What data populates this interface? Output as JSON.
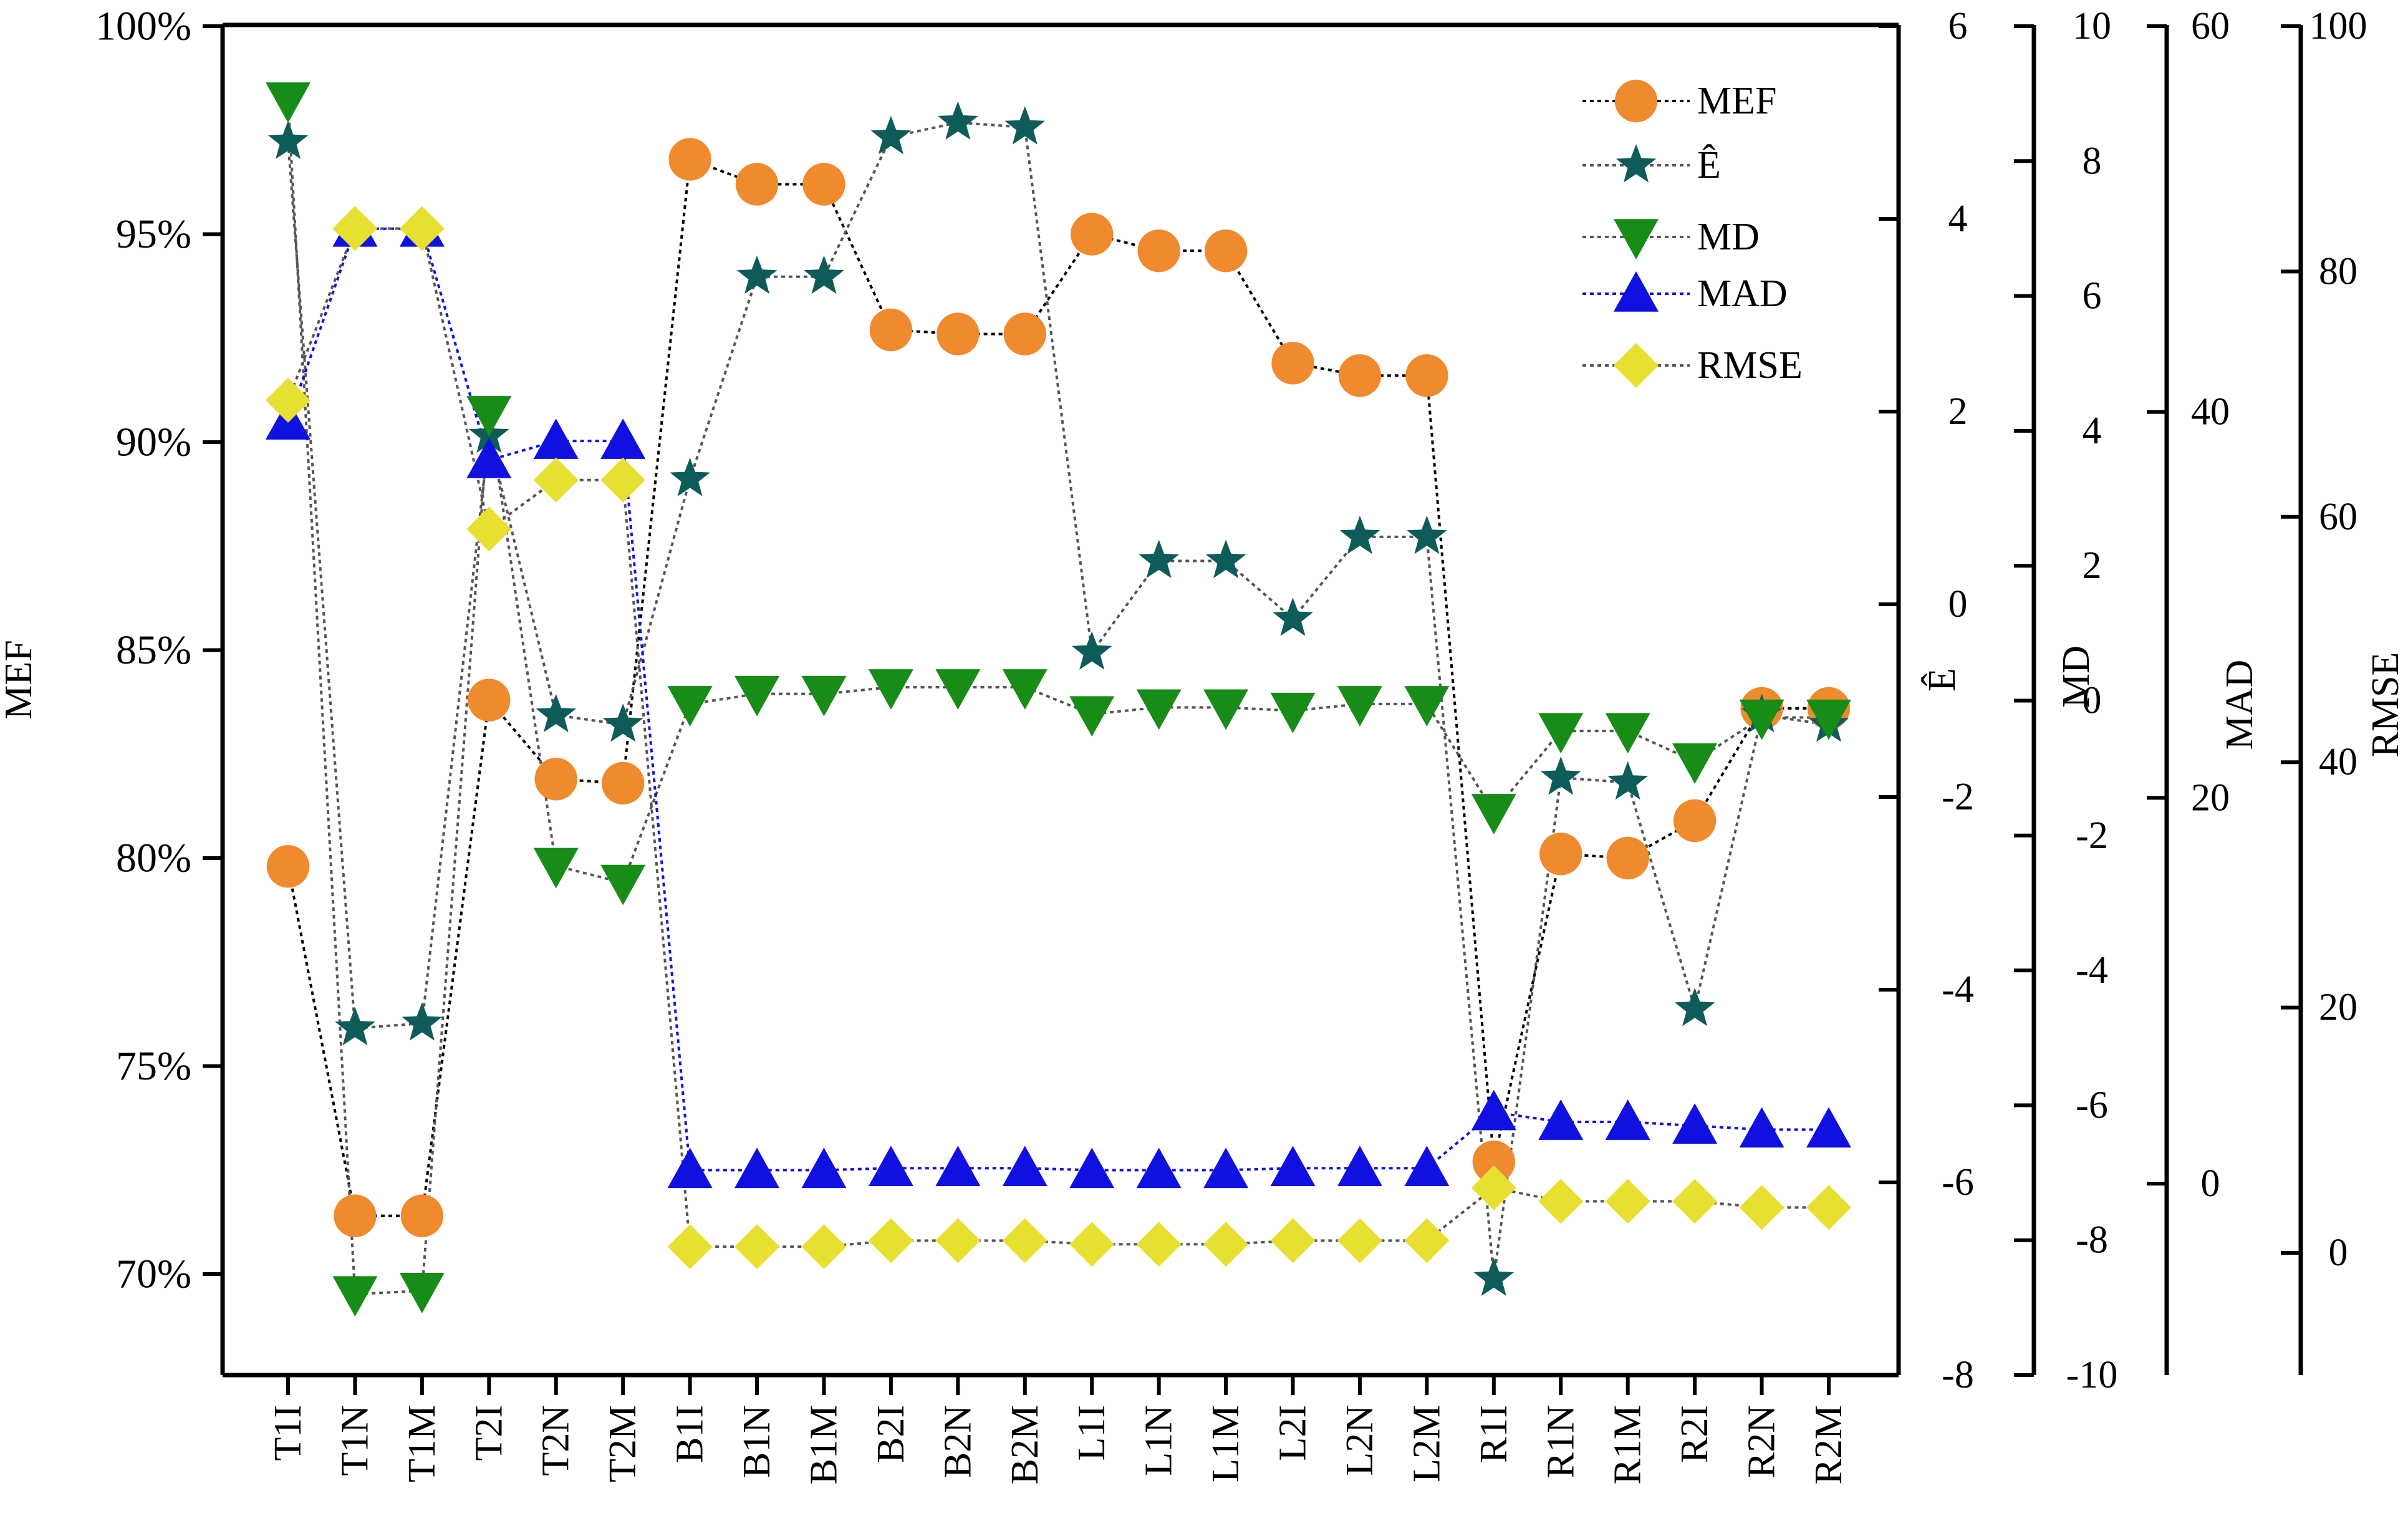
{
  "chart_data": {
    "type": "line",
    "categories": [
      "T1I",
      "T1N",
      "T1M",
      "T2I",
      "T2N",
      "T2M",
      "B1I",
      "B1N",
      "B1M",
      "B2I",
      "B2N",
      "B2M",
      "L1I",
      "L1N",
      "L1M",
      "L2I",
      "L2N",
      "L2M",
      "R1I",
      "R1N",
      "R1M",
      "R2I",
      "R2N",
      "R2M"
    ],
    "axes": {
      "MEF": {
        "label": "MEF",
        "ticks": [
          "100%",
          "95%",
          "90%",
          "85%",
          "80%",
          "75%",
          "70%"
        ],
        "tick_values": [
          100,
          95,
          90,
          85,
          80,
          75,
          70
        ],
        "ylim": [
          67.5,
          100
        ]
      },
      "E": {
        "label": "Ê",
        "ticks": [
          "6",
          "4",
          "2",
          "0",
          "-2",
          "-4",
          "-6",
          "-8"
        ],
        "tick_values": [
          6,
          4,
          2,
          0,
          -2,
          -4,
          -6,
          -8
        ],
        "ylim": [
          -8,
          6
        ]
      },
      "MD": {
        "label": "MD",
        "ticks": [
          "10",
          "8",
          "6",
          "4",
          "2",
          "0",
          "-2",
          "-4",
          "-6",
          "-8",
          "-10"
        ],
        "tick_values": [
          10,
          8,
          6,
          4,
          2,
          0,
          -2,
          -4,
          -6,
          -8,
          -10
        ],
        "ylim": [
          -10,
          10
        ]
      },
      "MAD": {
        "label": "MAD",
        "ticks": [
          "60",
          "40",
          "20",
          "0"
        ],
        "tick_values": [
          60,
          40,
          20,
          0
        ],
        "ylim": [
          -10,
          60
        ]
      },
      "RMSE": {
        "label": "RMSE",
        "ticks": [
          "100",
          "80",
          "60",
          "40",
          "20",
          "0"
        ],
        "tick_values": [
          100,
          80,
          60,
          40,
          20,
          0
        ],
        "ylim": [
          -10,
          100
        ]
      }
    },
    "series": [
      {
        "name": "MEF",
        "axis": "MEF",
        "marker": "circle",
        "color": "#F08A2E",
        "line_color": "#000000",
        "values": [
          79.8,
          71.4,
          71.4,
          83.8,
          81.9,
          81.8,
          96.8,
          96.2,
          96.2,
          92.7,
          92.6,
          92.6,
          95.0,
          94.6,
          94.6,
          91.9,
          91.6,
          91.6,
          72.7,
          80.1,
          80.0,
          80.9,
          83.6,
          83.6
        ]
      },
      {
        "name": "Ê",
        "axis": "E",
        "marker": "star",
        "color": "#0E5C5A",
        "line_color": "#555555",
        "values": [
          4.8,
          -4.4,
          -4.35,
          1.75,
          -1.15,
          -1.25,
          1.3,
          3.4,
          3.4,
          4.85,
          5.0,
          4.95,
          -0.5,
          0.45,
          0.45,
          -0.15,
          0.7,
          0.7,
          -7.0,
          -1.8,
          -1.85,
          -4.2,
          -1.15,
          -1.25
        ]
      },
      {
        "name": "MD",
        "axis": "MD",
        "marker": "triangle-down",
        "color": "#178C17",
        "line_color": "#555555",
        "values": [
          8.9,
          -8.8,
          -8.75,
          4.25,
          -2.45,
          -2.7,
          -0.05,
          0.1,
          0.1,
          0.2,
          0.2,
          0.2,
          -0.2,
          -0.1,
          -0.1,
          -0.15,
          -0.05,
          -0.05,
          -1.65,
          -0.45,
          -0.45,
          -0.9,
          -0.25,
          -0.25
        ]
      },
      {
        "name": "MAD",
        "axis": "MAD",
        "marker": "triangle-up",
        "color": "#1010E0",
        "line_color": "#1010E0",
        "values": [
          39.5,
          49.5,
          49.5,
          37.5,
          38.5,
          38.5,
          0.7,
          0.7,
          0.7,
          0.8,
          0.8,
          0.8,
          0.7,
          0.7,
          0.7,
          0.8,
          0.8,
          0.8,
          3.7,
          3.2,
          3.2,
          3.0,
          2.8,
          2.8
        ]
      },
      {
        "name": "RMSE",
        "axis": "RMSE",
        "marker": "diamond",
        "color": "#E8E030",
        "line_color": "#555555",
        "values": [
          69.5,
          83.5,
          83.5,
          59.0,
          63.0,
          63.0,
          0.5,
          0.5,
          0.5,
          1.0,
          1.0,
          1.0,
          0.7,
          0.7,
          0.7,
          1.0,
          1.0,
          1.0,
          5.3,
          4.2,
          4.2,
          4.2,
          3.7,
          3.7
        ]
      }
    ],
    "legend": {
      "position": "top-right",
      "entries": [
        "MEF",
        "Ê",
        "MD",
        "MAD",
        "RMSE"
      ]
    },
    "grid": false
  }
}
